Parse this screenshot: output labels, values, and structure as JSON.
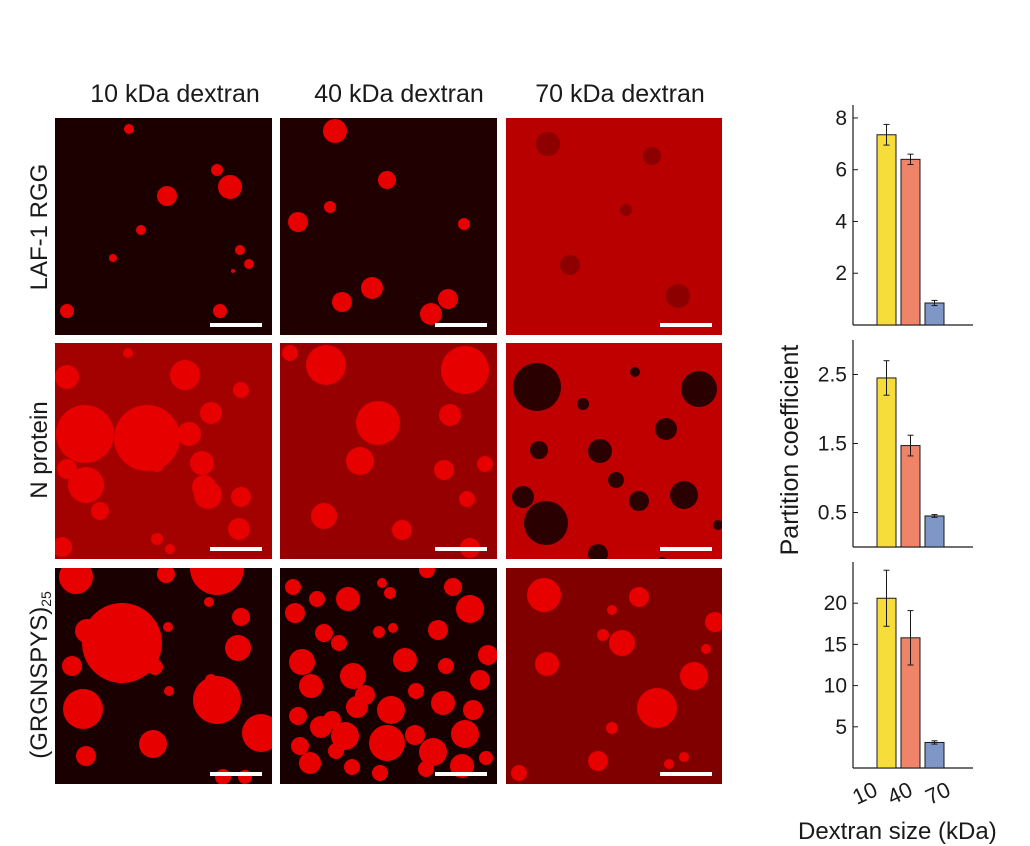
{
  "figure": {
    "columns": [
      "10 kDa dextran",
      "40 kDa dextran",
      "70 kDa dextran"
    ],
    "rows": [
      {
        "label": "LAF-1 RGG",
        "sub": ""
      },
      {
        "label": "N protein",
        "sub": ""
      },
      {
        "label": "(GRGNSPYS)",
        "sub": "25"
      }
    ],
    "colors": {
      "panel_dark": "#1c0000",
      "droplet": "#e60000",
      "scale_bar": "#ffffff",
      "bar_10": "#f6dd3a",
      "bar_40": "#ef8468",
      "bar_70": "#7f97c6"
    }
  },
  "chart_data": [
    {
      "type": "bar",
      "panel": "LAF-1 RGG",
      "categories": [
        "10",
        "40",
        "70"
      ],
      "values": [
        7.35,
        6.4,
        0.85
      ],
      "errors": [
        0.4,
        0.2,
        0.1
      ],
      "ylim": [
        0,
        8.5
      ],
      "yticks": [
        2,
        4,
        6,
        8
      ],
      "ytick_labels": [
        "2",
        "4",
        "6",
        "8"
      ]
    },
    {
      "type": "bar",
      "panel": "N protein",
      "categories": [
        "10",
        "40",
        "70"
      ],
      "values": [
        2.45,
        1.47,
        0.45
      ],
      "errors": [
        0.25,
        0.15,
        0.02
      ],
      "ylim": [
        0,
        3.0
      ],
      "yticks": [
        0.5,
        1.5,
        2.5
      ],
      "ytick_labels": [
        "0.5",
        "1.5",
        "2.5"
      ]
    },
    {
      "type": "bar",
      "panel": "(GRGNSPYS)25",
      "categories": [
        "10",
        "40",
        "70"
      ],
      "values": [
        20.6,
        15.8,
        3.1
      ],
      "errors": [
        3.4,
        3.3,
        0.2
      ],
      "ylim": [
        0,
        25
      ],
      "yticks": [
        5,
        10,
        15,
        20
      ],
      "ytick_labels": [
        "5",
        "10",
        "15",
        "20"
      ]
    }
  ],
  "axes": {
    "ylabel": "Partition coefficient",
    "xlabel": "Dextran size (kDa)",
    "xtick_labels": [
      "10",
      "40",
      "70"
    ]
  }
}
